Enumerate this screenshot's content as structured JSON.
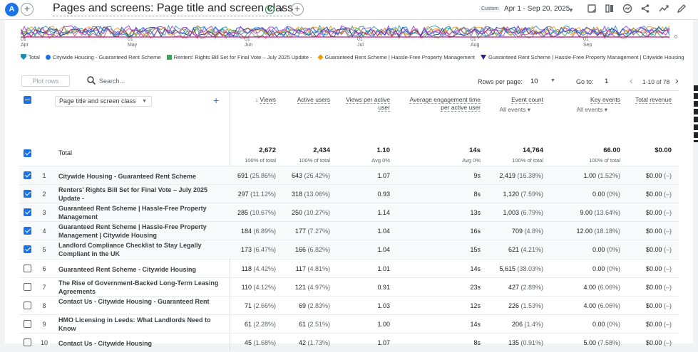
{
  "header": {
    "avatar_letter": "A",
    "title": "Pages and screens: Page title and screen class",
    "custom_tag": "Custom",
    "date_range": "Apr 1 - Sep 20, 2025"
  },
  "chart": {
    "months": [
      {
        "day": "01",
        "name": "Apr"
      },
      {
        "day": "01",
        "name": "May"
      },
      {
        "day": "01",
        "name": "Jun"
      },
      {
        "day": "01",
        "name": "Jul"
      },
      {
        "day": "01",
        "name": "Aug"
      },
      {
        "day": "01",
        "name": "Sep"
      }
    ],
    "zero_label": "0",
    "legend": [
      {
        "label": "Total",
        "color": "#1a8fb3",
        "shape": "pin"
      },
      {
        "label": "Citywide Housing - Guaranteed Rent Scheme",
        "color": "#1a73e8",
        "shape": "dot"
      },
      {
        "label": "Renters' Rights Bill Set for Final Vote – July 2025 Update -",
        "color": "#34a853",
        "shape": "square"
      },
      {
        "label": "Guaranteed Rent Scheme | Hassle-Free Property Management",
        "color": "#f29900",
        "shape": "diamond"
      },
      {
        "label": "Guaranteed Rent Scheme | Hassle-Free Property Management | Citywide Housing",
        "color": "#1f2a8a",
        "shape": "triangle"
      }
    ]
  },
  "toolbar": {
    "plot_rows": "Plot rows",
    "search_placeholder": "Search...",
    "rows_per_page_label": "Rows per page:",
    "rows_per_page": "10",
    "goto_label": "Go to:",
    "goto_value": "1",
    "page_range": "1-10 of 78"
  },
  "table": {
    "dimension": "Page title and screen class",
    "columns": [
      {
        "label": "Views",
        "sub": ""
      },
      {
        "label": "Active users",
        "sub": ""
      },
      {
        "label": "Views per active user",
        "sub": ""
      },
      {
        "label": "Average engagement time per active user",
        "sub": ""
      },
      {
        "label": "Event count",
        "sub": "All events"
      },
      {
        "label": "Key events",
        "sub": "All events"
      },
      {
        "label": "Total revenue",
        "sub": ""
      }
    ],
    "total": {
      "label": "Total",
      "values": [
        "2,672",
        "2,434",
        "1.10",
        "14s",
        "14,764",
        "66.00",
        "$0.00"
      ],
      "subs": [
        "100% of total",
        "100% of total",
        "Avg 0%",
        "Avg 0%",
        "100% of total",
        "100% of total",
        ""
      ]
    },
    "rows": [
      {
        "num": "1",
        "checked": true,
        "title": "Citywide Housing - Guaranteed Rent Scheme",
        "views": "691",
        "views_pct": "(25.86%)",
        "users": "643",
        "users_pct": "(26.42%)",
        "vpu": "1.07",
        "eng": "9s",
        "events": "2,419",
        "events_pct": "(16.38%)",
        "keys": "1.00",
        "keys_pct": "(1.52%)",
        "rev": "$0.00",
        "rev_pct": "(–)"
      },
      {
        "num": "2",
        "checked": true,
        "title": "Renters' Rights Bill Set for Final Vote – July 2025 Update -",
        "views": "297",
        "views_pct": "(11.12%)",
        "users": "318",
        "users_pct": "(13.06%)",
        "vpu": "0.93",
        "eng": "8s",
        "events": "1,120",
        "events_pct": "(7.59%)",
        "keys": "0.00",
        "keys_pct": "(0%)",
        "rev": "$0.00",
        "rev_pct": "(–)"
      },
      {
        "num": "3",
        "checked": true,
        "title": "Guaranteed Rent Scheme | Hassle-Free Property Management",
        "views": "285",
        "views_pct": "(10.67%)",
        "users": "250",
        "users_pct": "(10.27%)",
        "vpu": "1.14",
        "eng": "13s",
        "events": "1,003",
        "events_pct": "(6.79%)",
        "keys": "9.00",
        "keys_pct": "(13.64%)",
        "rev": "$0.00",
        "rev_pct": "(–)"
      },
      {
        "num": "4",
        "checked": true,
        "title": "Guaranteed Rent Scheme | Hassle-Free Property Management | Citywide Housing",
        "views": "184",
        "views_pct": "(6.89%)",
        "users": "177",
        "users_pct": "(7.27%)",
        "vpu": "1.04",
        "eng": "16s",
        "events": "709",
        "events_pct": "(4.8%)",
        "keys": "12.00",
        "keys_pct": "(18.18%)",
        "rev": "$0.00",
        "rev_pct": "(–)"
      },
      {
        "num": "5",
        "checked": true,
        "title": "Landlord Compliance Checklist to Stay Legally Compliant in the UK",
        "views": "173",
        "views_pct": "(6.47%)",
        "users": "166",
        "users_pct": "(6.82%)",
        "vpu": "1.04",
        "eng": "15s",
        "events": "621",
        "events_pct": "(4.21%)",
        "keys": "0.00",
        "keys_pct": "(0%)",
        "rev": "$0.00",
        "rev_pct": "(–)"
      },
      {
        "num": "6",
        "checked": false,
        "title": "Guaranteed Rent Scheme - Citywide Housing",
        "views": "118",
        "views_pct": "(4.42%)",
        "users": "117",
        "users_pct": "(4.81%)",
        "vpu": "1.01",
        "eng": "14s",
        "events": "5,615",
        "events_pct": "(38.03%)",
        "keys": "0.00",
        "keys_pct": "(0%)",
        "rev": "$0.00",
        "rev_pct": "(–)"
      },
      {
        "num": "7",
        "checked": false,
        "title": "The Rise of Government-Backed Long-Term Leasing Agreements",
        "views": "110",
        "views_pct": "(4.12%)",
        "users": "121",
        "users_pct": "(4.97%)",
        "vpu": "0.91",
        "eng": "23s",
        "events": "427",
        "events_pct": "(2.89%)",
        "keys": "4.00",
        "keys_pct": "(6.06%)",
        "rev": "$0.00",
        "rev_pct": "(–)"
      },
      {
        "num": "8",
        "checked": false,
        "title": "Contact Us - Citywide Housing - Guaranteed Rent",
        "views": "71",
        "views_pct": "(2.66%)",
        "users": "69",
        "users_pct": "(2.83%)",
        "vpu": "1.03",
        "eng": "12s",
        "events": "226",
        "events_pct": "(1.53%)",
        "keys": "4.00",
        "keys_pct": "(6.06%)",
        "rev": "$0.00",
        "rev_pct": "(–)"
      },
      {
        "num": "9",
        "checked": false,
        "title": "HMO Licensing in Leeds: What Landlords Need to Know",
        "views": "61",
        "views_pct": "(2.28%)",
        "users": "61",
        "users_pct": "(2.51%)",
        "vpu": "1.00",
        "eng": "14s",
        "events": "206",
        "events_pct": "(1.4%)",
        "keys": "0.00",
        "keys_pct": "(0%)",
        "rev": "$0.00",
        "rev_pct": "(–)"
      },
      {
        "num": "10",
        "checked": false,
        "title": "Contact Us - Citywide Housing",
        "views": "45",
        "views_pct": "(1.68%)",
        "users": "42",
        "users_pct": "(1.73%)",
        "vpu": "1.07",
        "eng": "8s",
        "events": "135",
        "events_pct": "(0.91%)",
        "keys": "5.00",
        "keys_pct": "(7.58%)",
        "rev": "$0.00",
        "rev_pct": "(–)"
      }
    ]
  }
}
